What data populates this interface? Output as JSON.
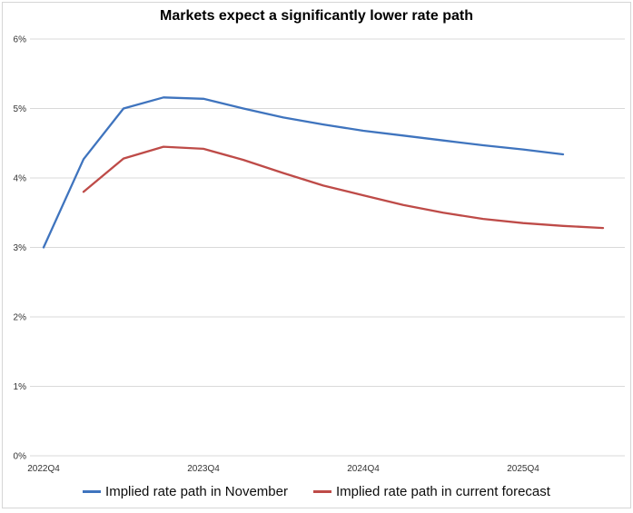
{
  "title": "Markets expect a significantly lower rate path",
  "colors": {
    "november_line": "#3F74BE",
    "current_line": "#BE4B48",
    "gridline": "#d9d9d9",
    "axis_text": "#333333",
    "border": "#d6d6d6"
  },
  "chart_data": {
    "type": "line",
    "title": "Markets expect a significantly lower rate path",
    "xlabel": "",
    "ylabel": "",
    "ylim": [
      0,
      6
    ],
    "grid": "horizontal",
    "legend_position": "bottom",
    "y_tick_labels": [
      "0%",
      "1%",
      "2%",
      "3%",
      "4%",
      "5%",
      "6%"
    ],
    "x_categories": [
      "2022Q4",
      "2023Q1",
      "2023Q2",
      "2023Q3",
      "2023Q4",
      "2024Q1",
      "2024Q2",
      "2024Q3",
      "2024Q4",
      "2025Q1",
      "2025Q2",
      "2025Q3",
      "2025Q4",
      "2026Q1",
      "2026Q2"
    ],
    "x_ticks": [
      {
        "index": 0,
        "label": "2022Q4"
      },
      {
        "index": 4,
        "label": "2023Q4"
      },
      {
        "index": 8,
        "label": "2024Q4"
      },
      {
        "index": 12,
        "label": "2025Q4"
      }
    ],
    "series": [
      {
        "name": "Implied rate path in November",
        "color": "#3F74BE",
        "start_index": 0,
        "values": [
          3.0,
          4.27,
          5.0,
          5.16,
          5.14,
          5.0,
          4.87,
          4.77,
          4.68,
          4.61,
          4.54,
          4.47,
          4.41,
          4.34
        ]
      },
      {
        "name": "Implied rate path in current forecast",
        "color": "#BE4B48",
        "start_index": 1,
        "values": [
          3.8,
          4.28,
          4.45,
          4.42,
          4.26,
          4.07,
          3.89,
          3.75,
          3.61,
          3.5,
          3.41,
          3.35,
          3.31,
          3.28
        ]
      }
    ]
  },
  "legend": {
    "items": [
      {
        "label": "Implied rate path in November",
        "color": "#3F74BE"
      },
      {
        "label": "Implied rate path in current forecast",
        "color": "#BE4B48"
      }
    ]
  }
}
